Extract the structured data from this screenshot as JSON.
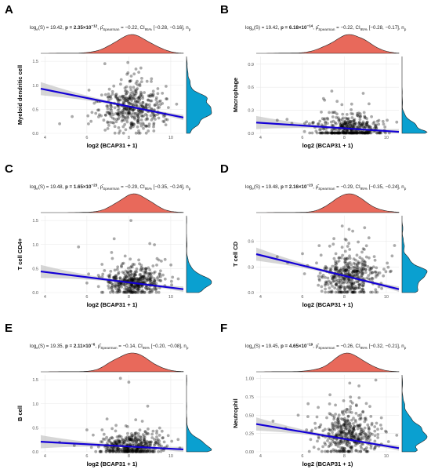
{
  "style": {
    "point_color": "#000000",
    "line_color": "#1400d6",
    "band_color": "#c8c8c8",
    "top_density_color": "#e8695b",
    "right_density_color": "#0aa0d0",
    "grid_color": "#e9e9e9"
  },
  "panels": [
    {
      "letter": "A",
      "subtitle": {
        "pre": "log",
        "pre_sub": "e",
        "pre2": "(S) = 19.42, ",
        "p": "p = 2.35×10",
        "p_exp": "−12",
        "rest": ", ρ̂",
        "rest_sub": "Spearman",
        "rest2": " = −0.22, CI",
        "ci_sub": "95%",
        "ci": " [−0.28, −0.16], n",
        "n_sub": "p"
      }
    },
    {
      "letter": "B",
      "subtitle": {
        "pre": "log",
        "pre_sub": "e",
        "pre2": "(S) = 19.42, ",
        "p": "p = 6.18×10",
        "p_exp": "−14",
        "rest": ", ρ̂",
        "rest_sub": "Spearman",
        "rest2": " = −0.22, CI",
        "ci_sub": "95%",
        "ci": " [−0.28, −0.17], n",
        "n_sub": "p"
      }
    },
    {
      "letter": "C",
      "subtitle": {
        "pre": "log",
        "pre_sub": "e",
        "pre2": "(S) = 19.48, ",
        "p": "p = 1.65×10",
        "p_exp": "−23",
        "rest": ", ρ̂",
        "rest_sub": "Spearman",
        "rest2": " = −0.29, CI",
        "ci_sub": "95%",
        "ci": " [−0.35, −0.24], n",
        "n_sub": "p"
      }
    },
    {
      "letter": "D",
      "subtitle": {
        "pre": "log",
        "pre_sub": "e",
        "pre2": "(S) = 19.48, ",
        "p": "p = 2.16×10",
        "p_exp": "−23",
        "rest": ", ρ̂",
        "rest_sub": "Spearman",
        "rest2": " = −0.29, CI",
        "ci_sub": "95%",
        "ci": " [−0.35, −0.24], n",
        "n_sub": "p"
      }
    },
    {
      "letter": "E",
      "subtitle": {
        "pre": "log",
        "pre_sub": "e",
        "pre2": "(S) = 19.35, ",
        "p": "p = 2.11×10",
        "p_exp": "−6",
        "rest": ", ρ̂",
        "rest_sub": "Spearman",
        "rest2": " = −0.14, CI",
        "ci_sub": "95%",
        "ci": " [−0.20, −0.08], n",
        "n_sub": "p"
      }
    },
    {
      "letter": "F",
      "subtitle": {
        "pre": "log",
        "pre_sub": "e",
        "pre2": "(S) = 19.45, ",
        "p": "p = 4.65×10",
        "p_exp": "−19",
        "rest": ", ρ̂",
        "rest_sub": "Spearman",
        "rest2": " = −0.26, CI",
        "ci_sub": "95%",
        "ci": " [−0.32, −0.21], n",
        "n_sub": "p"
      }
    }
  ],
  "chart_data": [
    {
      "type": "scatter",
      "panel": "A",
      "xlabel": "log2 (BCAP31 + 1)",
      "ylabel": "Myeloid dendritic cell",
      "xlim": [
        3.8,
        10.6
      ],
      "ylim": [
        0,
        1.6
      ],
      "xticks": [
        4,
        6,
        8,
        10
      ],
      "yticks": [
        0,
        0.5,
        1,
        1.5
      ],
      "ytick_labels": [
        "0.0",
        "0.5",
        "1.0",
        "1.5"
      ],
      "grid": true,
      "fit": {
        "x": [
          3.8,
          10.6
        ],
        "y": [
          0.93,
          0.33
        ]
      },
      "cloud": {
        "x_center": 8.2,
        "x_sd": 0.75,
        "y_median": 0.5,
        "y_spread": 0.25,
        "n": 420
      },
      "outliers": [
        [
          5.3,
          0.35
        ],
        [
          6.2,
          0.25
        ],
        [
          6.1,
          0.9
        ],
        [
          7.7,
          0.28
        ],
        [
          4.7,
          0.2
        ],
        [
          7.0,
          0.1
        ]
      ]
    },
    {
      "type": "scatter",
      "panel": "B",
      "xlabel": "log2 (BCAP31 + 1)",
      "ylabel": "Macrophage",
      "xlim": [
        3.8,
        10.6
      ],
      "ylim": [
        0,
        1.0
      ],
      "xticks": [
        4,
        6,
        8,
        10
      ],
      "yticks": [
        0,
        0.3,
        0.6,
        0.9
      ],
      "ytick_labels": [
        "0.0",
        "0.3",
        "0.6",
        "0.9"
      ],
      "grid": true,
      "fit": {
        "x": [
          3.8,
          10.6
        ],
        "y": [
          0.14,
          0.02
        ]
      },
      "cloud": {
        "x_center": 8.2,
        "x_sd": 0.75,
        "y_median": 0.05,
        "y_spread": 0.1,
        "n": 420
      },
      "outliers": [
        [
          4.8,
          0.17
        ],
        [
          5.5,
          0.13
        ],
        [
          6.2,
          0.15
        ],
        [
          7.4,
          0.55
        ],
        [
          8.9,
          0.52
        ],
        [
          6.6,
          0.08
        ]
      ]
    },
    {
      "type": "scatter",
      "panel": "C",
      "xlabel": "log2 (BCAP31 + 1)",
      "ylabel": "T cell CD4+",
      "xlim": [
        3.8,
        10.6
      ],
      "ylim": [
        0,
        1.6
      ],
      "xticks": [
        4,
        6,
        8,
        10
      ],
      "yticks": [
        0,
        0.5,
        1,
        1.5
      ],
      "ytick_labels": [
        "0.0",
        "0.5",
        "1.0",
        "1.5"
      ],
      "grid": true,
      "fit": {
        "x": [
          3.8,
          10.6
        ],
        "y": [
          0.44,
          0.07
        ]
      },
      "cloud": {
        "x_center": 8.2,
        "x_sd": 0.75,
        "y_median": 0.2,
        "y_spread": 0.16,
        "n": 420
      },
      "outliers": [
        [
          5.6,
          0.95
        ],
        [
          6.0,
          0.2
        ],
        [
          6.6,
          0.32
        ],
        [
          8.1,
          1.5
        ],
        [
          7.3,
          1.12
        ],
        [
          9.0,
          1.02
        ]
      ]
    },
    {
      "type": "scatter",
      "panel": "D",
      "xlabel": "log2 (BCAP31 + 1)",
      "ylabel": "T cell CD",
      "xlim": [
        3.8,
        10.6
      ],
      "ylim": [
        0,
        0.9
      ],
      "xticks": [
        4,
        6,
        8,
        10
      ],
      "yticks": [
        0,
        0.3,
        0.6
      ],
      "ytick_labels": [
        "0.0",
        "0.3",
        "0.6"
      ],
      "grid": true,
      "fit": {
        "x": [
          3.8,
          10.6
        ],
        "y": [
          0.45,
          0.04
        ]
      },
      "cloud": {
        "x_center": 8.2,
        "x_sd": 0.75,
        "y_median": 0.18,
        "y_spread": 0.14,
        "n": 420
      },
      "outliers": [
        [
          4.8,
          0.42
        ],
        [
          5.3,
          0.35
        ],
        [
          6.1,
          0.22
        ],
        [
          7.9,
          0.78
        ],
        [
          8.4,
          0.72
        ],
        [
          6.8,
          0.55
        ]
      ]
    },
    {
      "type": "scatter",
      "panel": "E",
      "xlabel": "log2 (BCAP31 + 1)",
      "ylabel": "B cell",
      "xlim": [
        3.8,
        10.6
      ],
      "ylim": [
        0,
        1.6
      ],
      "xticks": [
        4,
        6,
        8,
        10
      ],
      "yticks": [
        0,
        0.5,
        1,
        1.5
      ],
      "ytick_labels": [
        "0.0",
        "0.5",
        "1.0",
        "1.5"
      ],
      "grid": true,
      "fit": {
        "x": [
          3.8,
          10.6
        ],
        "y": [
          0.21,
          0.05
        ]
      },
      "cloud": {
        "x_center": 8.2,
        "x_sd": 0.75,
        "y_median": 0.12,
        "y_spread": 0.14,
        "n": 420
      },
      "outliers": [
        [
          4.7,
          0.2
        ],
        [
          5.4,
          0.13
        ],
        [
          6.3,
          0.35
        ],
        [
          7.6,
          1.53
        ],
        [
          8.0,
          1.45
        ],
        [
          8.9,
          0.95
        ]
      ]
    },
    {
      "type": "scatter",
      "panel": "F",
      "xlabel": "log2 (BCAP31 + 1)",
      "ylabel": "Neutrophil",
      "xlim": [
        3.8,
        10.6
      ],
      "ylim": [
        0,
        1.05
      ],
      "xticks": [
        4,
        6,
        8,
        10
      ],
      "yticks": [
        0,
        0.25,
        0.5,
        0.75,
        1
      ],
      "ytick_labels": [
        "0.00",
        "0.25",
        "0.50",
        "0.75",
        "1.00"
      ],
      "grid": true,
      "fit": {
        "x": [
          3.8,
          10.6
        ],
        "y": [
          0.38,
          0.05
        ]
      },
      "cloud": {
        "x_center": 8.2,
        "x_sd": 0.75,
        "y_median": 0.22,
        "y_spread": 0.16,
        "n": 420
      },
      "outliers": [
        [
          4.6,
          0.42
        ],
        [
          5.2,
          0.32
        ],
        [
          5.8,
          0.5
        ],
        [
          6.2,
          0.3
        ],
        [
          9.5,
          0.98
        ],
        [
          8.7,
          0.9
        ]
      ]
    }
  ]
}
